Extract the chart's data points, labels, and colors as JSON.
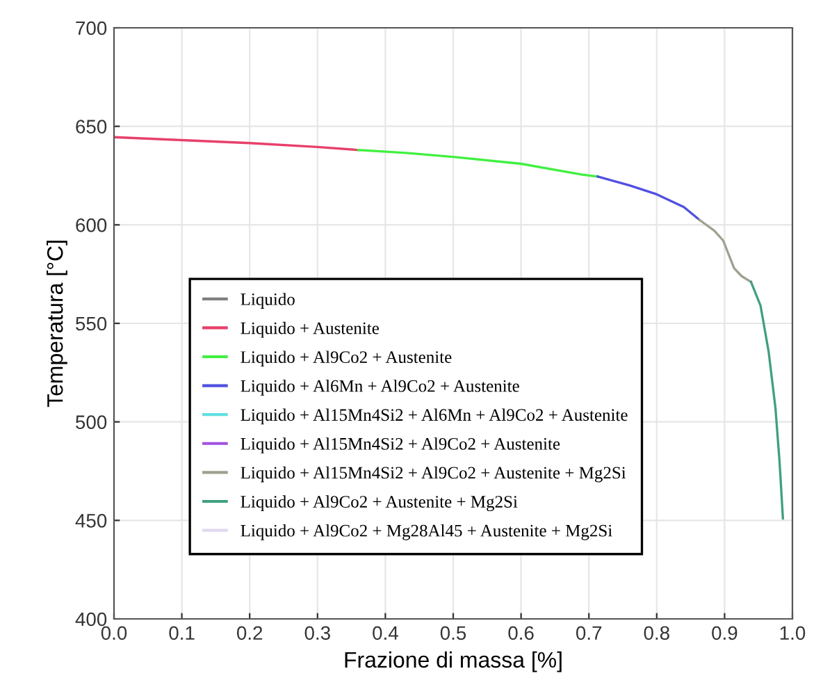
{
  "chart_data": {
    "type": "line",
    "xlabel": "Frazione di massa [%]",
    "ylabel": "Temperatura [°C]",
    "xlim": [
      0,
      1
    ],
    "xticks": [
      {
        "value": 0,
        "label": "0.0"
      },
      0.1,
      0.2,
      0.3,
      0.4,
      0.5,
      0.6,
      0.7,
      0.8,
      0.9,
      {
        "value": 1,
        "label": "1.0"
      }
    ],
    "ylim": [
      400,
      700
    ],
    "yticks": [
      400,
      450,
      500,
      550,
      600,
      650,
      700
    ],
    "grid": true,
    "legend": "bottom",
    "series": [
      {
        "name": "Liquido",
        "color": "#808080"
      },
      {
        "name": "Liquido + Austenite",
        "color": "#e8406a",
        "x": [
          0,
          0.1,
          0.2,
          0.3,
          0.36
        ],
        "values": [
          644.5,
          643,
          641.5,
          639.5,
          638
        ]
      },
      {
        "name": "Liquido + Al9Co2 + Austenite",
        "color": "#40f040",
        "x": [
          0.36,
          0.43,
          0.5,
          0.6,
          0.69,
          0.713
        ],
        "values": [
          638,
          636.5,
          634.5,
          631,
          625.5,
          624.5
        ]
      },
      {
        "name": "Liquido + Al6Mn + Al9Co2 + Austenite",
        "color": "#5050e0",
        "x": [
          0.713,
          0.76,
          0.8,
          0.84,
          0.863
        ],
        "values": [
          624.5,
          620,
          615.5,
          609,
          602.5
        ]
      },
      {
        "name": "Liquido + Al15Mn4Si2 + Al6Mn + Al9Co2 + Austenite",
        "color": "#60e0e0"
      },
      {
        "name": "Liquido + Al15Mn4Si2 + Al9Co2 + Austenite",
        "color": "#a050e0"
      },
      {
        "name": "Liquido + Al15Mn4Si2 + Al9Co2 + Austenite + Mg2Si",
        "color": "#a0a090",
        "x": [
          0.863,
          0.885,
          0.898,
          0.914,
          0.925,
          0.939
        ],
        "values": [
          602.5,
          597,
          592,
          578,
          574,
          571
        ]
      },
      {
        "name": "Liquido + Al9Co2 + Austenite + Mg2Si",
        "color": "#40a080",
        "x": [
          0.939,
          0.953,
          0.965,
          0.975,
          0.981,
          0.986
        ],
        "values": [
          571,
          559,
          535.5,
          507,
          480,
          451
        ]
      },
      {
        "name": "Liquido + Al9Co2 + Mg28Al45 + Austenite + Mg2Si",
        "color": "#e0d8f0"
      }
    ]
  }
}
